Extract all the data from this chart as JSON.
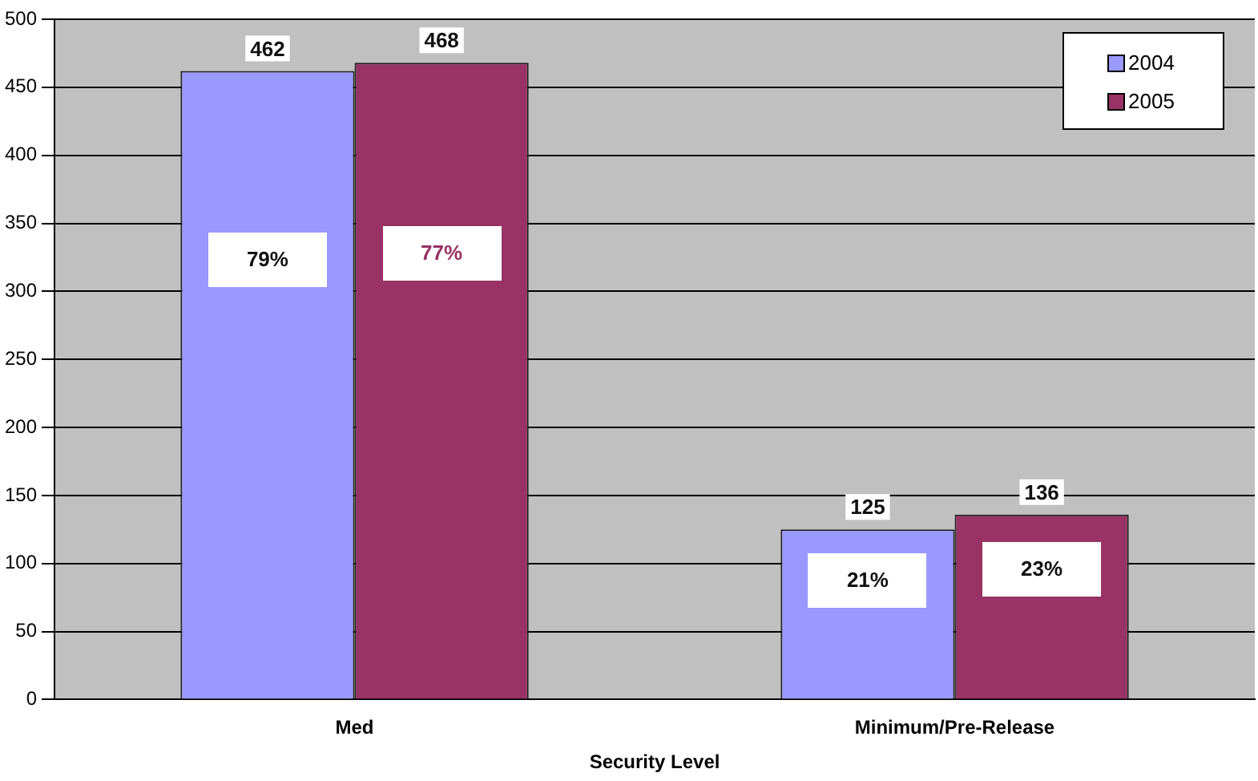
{
  "chart_data": {
    "type": "bar",
    "xlabel": "Security Level",
    "categories": [
      "Med",
      "Minimum/Pre-Release"
    ],
    "series": [
      {
        "name": "2004",
        "color": "#9999ff",
        "values": [
          462,
          125
        ]
      },
      {
        "name": "2005",
        "color": "#993366",
        "values": [
          468,
          136
        ]
      }
    ],
    "ylim": [
      0,
      500
    ],
    "yticks": [
      0,
      50,
      100,
      150,
      200,
      250,
      300,
      350,
      400,
      450,
      500
    ],
    "grid": "y",
    "legend": "top right",
    "data_labels": true,
    "annotations": [
      "79%",
      "77%",
      "21%",
      "23%"
    ]
  }
}
